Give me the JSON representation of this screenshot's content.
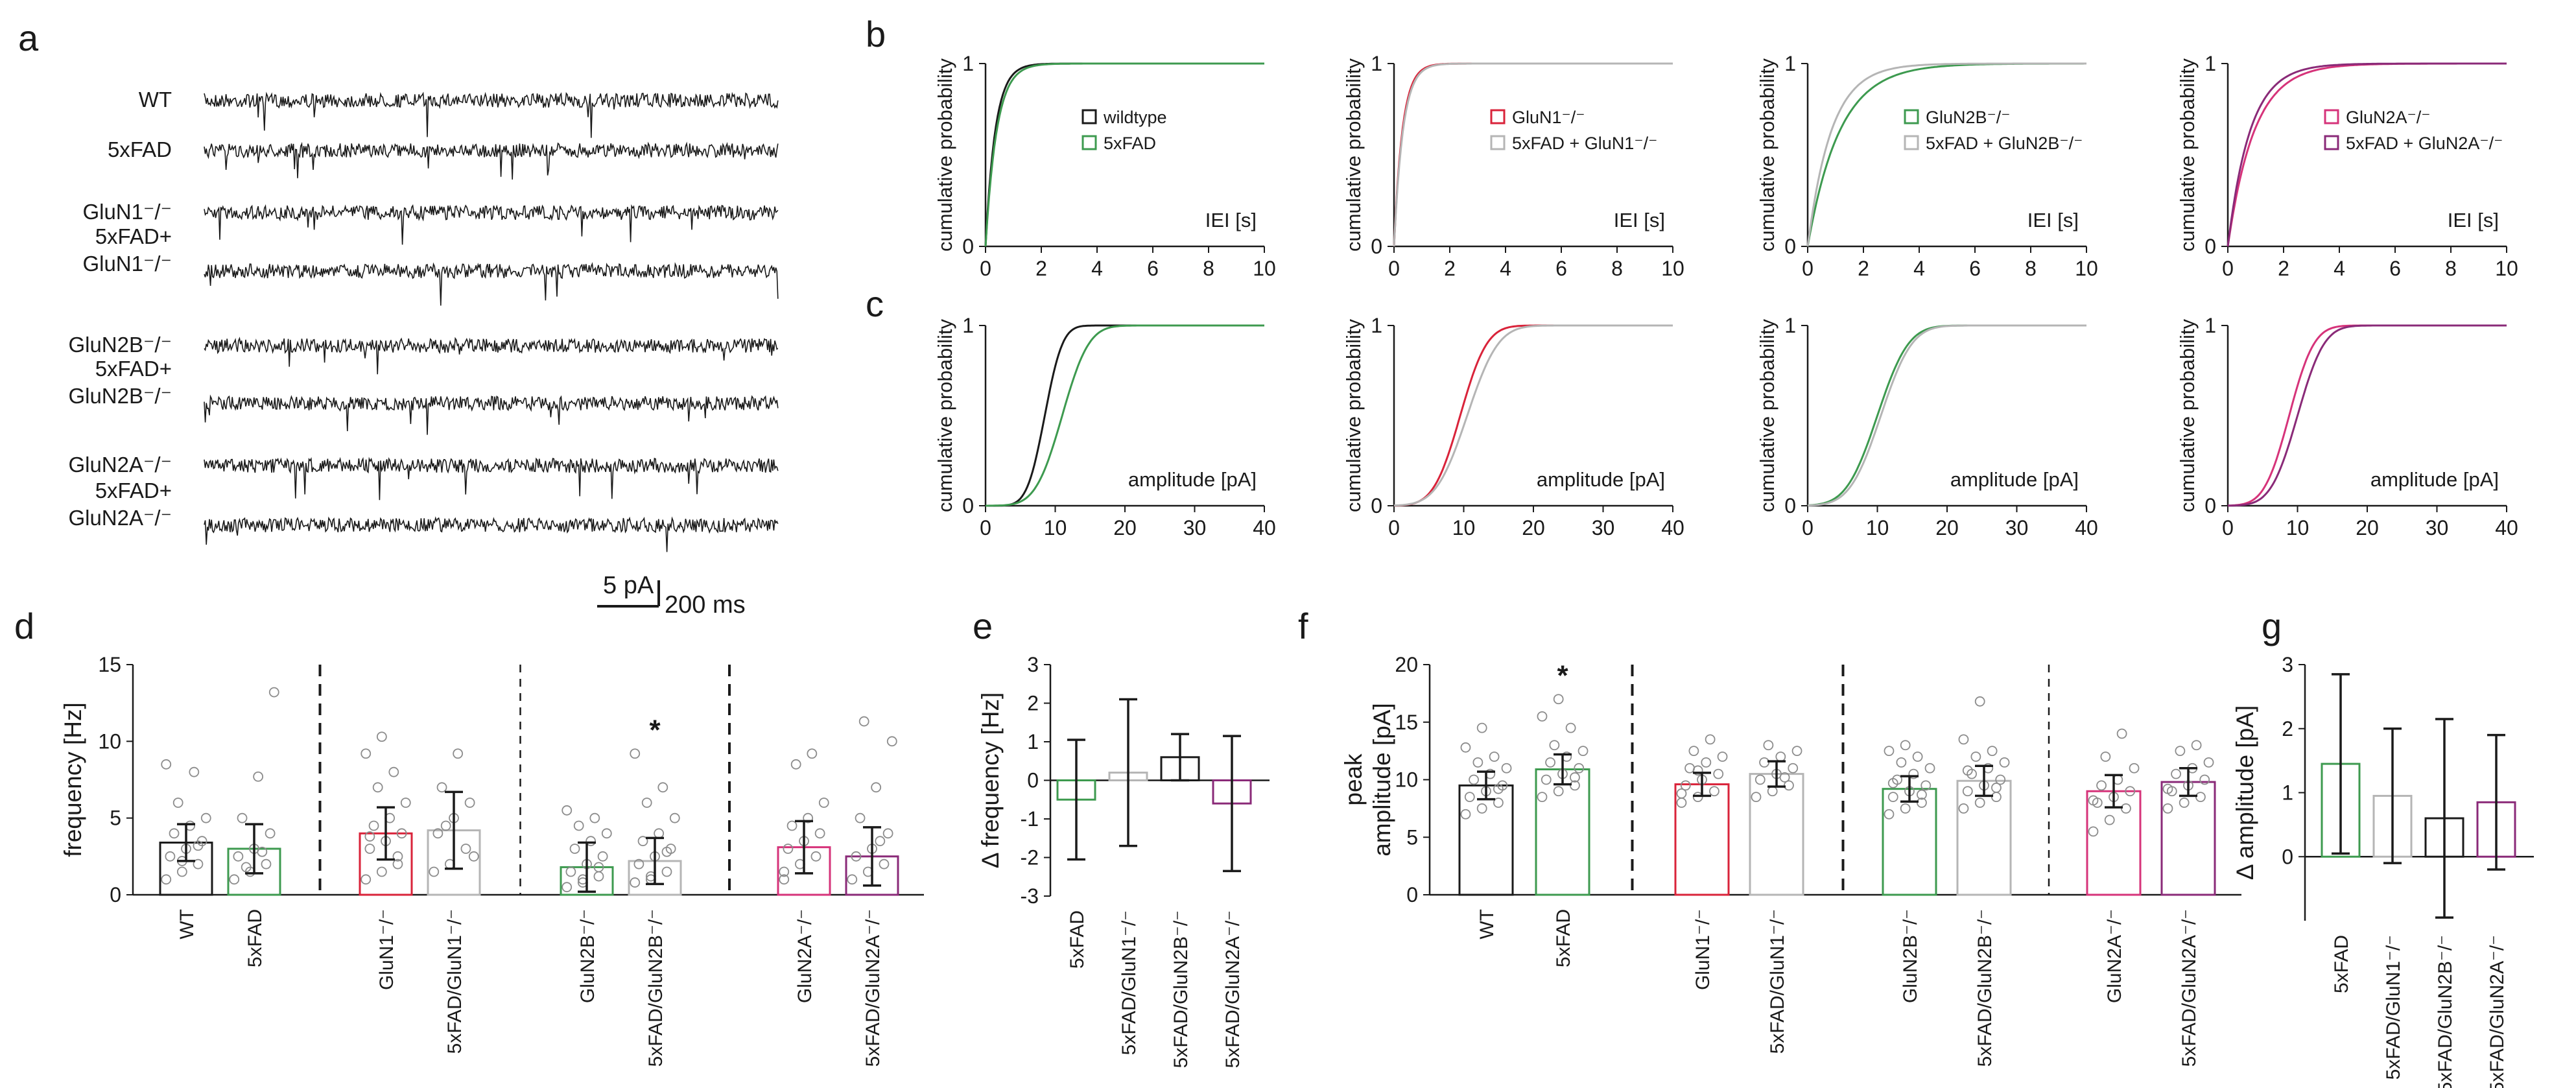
{
  "panel_letters": [
    "a",
    "b",
    "c",
    "d",
    "e",
    "f",
    "g"
  ],
  "traces": {
    "labels": [
      "WT",
      "5xFAD",
      "GluN1⁻/⁻",
      "5xFAD+\nGluN1⁻/⁻",
      "GluN2B⁻/⁻",
      "5xFAD+\nGluN2B⁻/⁻",
      "GluN2A⁻/⁻",
      "5xFAD+\nGluN2A⁻/⁻"
    ],
    "scale_amp": "5 pA",
    "scale_time": "200 ms"
  },
  "colors": {
    "black": "#1a1a1a",
    "green": "#3d9a4f",
    "red": "#d9233a",
    "gray": "#b5b5b5",
    "magenta": "#d6337a",
    "purple": "#8a2a78"
  },
  "chart_data": [
    {
      "id": "b",
      "type": "line",
      "panel": "b",
      "column": 0,
      "xlabel": "IEI [s]",
      "ylabel": "cumulative probability",
      "xlim": [
        0,
        10
      ],
      "ylim": [
        0,
        1
      ],
      "xticks": [
        0,
        2,
        4,
        6,
        8,
        10
      ],
      "yticks": [
        0,
        1
      ],
      "legend": [
        "wildtype",
        "5xFAD"
      ],
      "series": [
        {
          "name": "wildtype",
          "color": "black",
          "tau": 0.35
        },
        {
          "name": "5xFAD",
          "color": "green",
          "tau": 0.4
        }
      ]
    },
    {
      "id": "b",
      "type": "line",
      "panel": "b",
      "column": 1,
      "xlabel": "IEI [s]",
      "ylabel": "cumulative probability",
      "xlim": [
        0,
        10
      ],
      "ylim": [
        0,
        1
      ],
      "xticks": [
        0,
        2,
        4,
        6,
        8,
        10
      ],
      "yticks": [
        0,
        1
      ],
      "legend": [
        "GluN1⁻/⁻",
        "5xFAD + GluN1⁻/⁻"
      ],
      "series": [
        {
          "name": "GluN1⁻/⁻",
          "color": "red",
          "tau": 0.3
        },
        {
          "name": "5xFAD + GluN1⁻/⁻",
          "color": "gray",
          "tau": 0.32
        }
      ]
    },
    {
      "id": "b",
      "type": "line",
      "panel": "b",
      "column": 2,
      "xlabel": "IEI [s]",
      "ylabel": "cumulative probability",
      "xlim": [
        0,
        10
      ],
      "ylim": [
        0,
        1
      ],
      "xticks": [
        0,
        2,
        4,
        6,
        8,
        10
      ],
      "yticks": [
        0,
        1
      ],
      "legend": [
        "GluN2B⁻/⁻",
        "5xFAD + GluN2B⁻/⁻"
      ],
      "series": [
        {
          "name": "GluN2B⁻/⁻",
          "color": "green",
          "tau": 1.15
        },
        {
          "name": "5xFAD + GluN2B⁻/⁻",
          "color": "gray",
          "tau": 0.85
        }
      ]
    },
    {
      "id": "b",
      "type": "line",
      "panel": "b",
      "column": 3,
      "xlabel": "IEI [s]",
      "ylabel": "cumulative probability",
      "xlim": [
        0,
        10
      ],
      "ylim": [
        0,
        1
      ],
      "xticks": [
        0,
        2,
        4,
        6,
        8,
        10
      ],
      "yticks": [
        0,
        1
      ],
      "legend": [
        "GluN2A⁻/⁻",
        "5xFAD + GluN2A⁻/⁻"
      ],
      "series": [
        {
          "name": "GluN2A⁻/⁻",
          "color": "magenta",
          "tau": 0.95
        },
        {
          "name": "5xFAD + GluN2A⁻/⁻",
          "color": "purple",
          "tau": 0.8
        }
      ]
    },
    {
      "id": "c",
      "type": "line",
      "panel": "c",
      "column": 0,
      "xlabel": "amplitude [pA]",
      "ylabel": "cumulative probability",
      "xlim": [
        0,
        40
      ],
      "ylim": [
        0,
        1
      ],
      "xticks": [
        0,
        10,
        20,
        30,
        40
      ],
      "yticks": [
        0,
        1
      ],
      "series": [
        {
          "name": "wildtype",
          "color": "black",
          "mu": 8.5,
          "sigma": 2.0
        },
        {
          "name": "5xFAD",
          "color": "green",
          "mu": 11.0,
          "sigma": 3.0
        }
      ]
    },
    {
      "id": "c",
      "type": "line",
      "panel": "c",
      "column": 1,
      "xlabel": "amplitude [pA]",
      "ylabel": "cumulative probability",
      "xlim": [
        0,
        40
      ],
      "ylim": [
        0,
        1
      ],
      "xticks": [
        0,
        10,
        20,
        30,
        40
      ],
      "yticks": [
        0,
        1
      ],
      "series": [
        {
          "name": "GluN1⁻/⁻",
          "color": "red",
          "mu": 9.5,
          "sigma": 3.0
        },
        {
          "name": "5xFAD + GluN1⁻/⁻",
          "color": "gray",
          "mu": 10.5,
          "sigma": 3.5
        }
      ]
    },
    {
      "id": "c",
      "type": "line",
      "panel": "c",
      "column": 2,
      "xlabel": "amplitude [pA]",
      "ylabel": "cumulative probability",
      "xlim": [
        0,
        40
      ],
      "ylim": [
        0,
        1
      ],
      "xticks": [
        0,
        10,
        20,
        30,
        40
      ],
      "yticks": [
        0,
        1
      ],
      "series": [
        {
          "name": "GluN2B⁻/⁻",
          "color": "green",
          "mu": 10.0,
          "sigma": 3.5
        },
        {
          "name": "5xFAD + GluN2B⁻/⁻",
          "color": "gray",
          "mu": 10.5,
          "sigma": 3.5
        }
      ]
    },
    {
      "id": "c",
      "type": "line",
      "panel": "c",
      "column": 3,
      "xlabel": "amplitude [pA]",
      "ylabel": "cumulative probability",
      "xlim": [
        0,
        40
      ],
      "ylim": [
        0,
        1
      ],
      "xticks": [
        0,
        10,
        20,
        30,
        40
      ],
      "yticks": [
        0,
        1
      ],
      "series": [
        {
          "name": "GluN2A⁻/⁻",
          "color": "magenta",
          "mu": 8.8,
          "sigma": 2.8
        },
        {
          "name": "5xFAD + GluN2A⁻/⁻",
          "color": "purple",
          "mu": 10.0,
          "sigma": 3.0
        }
      ]
    },
    {
      "id": "d",
      "type": "bar",
      "panel": "d",
      "ylabel": "frequency [Hz]",
      "ylim": [
        0,
        15
      ],
      "yticks": [
        0,
        5,
        10,
        15
      ],
      "categories": [
        "WT",
        "5xFAD",
        "GluN1⁻/⁻",
        "5xFAD/GluN1⁻/⁻",
        "GluN2B⁻/⁻",
        "5xFAD/GluN2B⁻/⁻",
        "GluN2A⁻/⁻",
        "5xFAD/GluN2A⁻/⁻"
      ],
      "colors": [
        "black",
        "green",
        "red",
        "gray",
        "green",
        "gray",
        "magenta",
        "purple"
      ],
      "values": [
        3.4,
        3.0,
        4.0,
        4.2,
        1.8,
        2.2,
        3.1,
        2.5
      ],
      "err": [
        1.2,
        1.6,
        1.7,
        2.5,
        1.6,
        1.5,
        1.7,
        1.9
      ],
      "points": [
        [
          1.0,
          1.5,
          2.0,
          2.5,
          3.0,
          3.5,
          4.0,
          4.5,
          5.0,
          6.0,
          8.0,
          8.5,
          2.2,
          3.2
        ],
        [
          1.0,
          1.5,
          2.0,
          2.5,
          3.0,
          4.0,
          5.0,
          7.7,
          13.2,
          1.8,
          2.8
        ],
        [
          1.0,
          1.5,
          2.0,
          3.0,
          3.5,
          4.0,
          4.5,
          5.0,
          6.0,
          7.0,
          8.0,
          9.2,
          10.3,
          2.5,
          3.8
        ],
        [
          1.5,
          2.0,
          3.0,
          4.0,
          5.0,
          6.0,
          7.0,
          9.2,
          2.5,
          4.5
        ],
        [
          0.5,
          1.0,
          1.2,
          1.5,
          2.0,
          2.5,
          3.0,
          3.5,
          4.0,
          4.5,
          5.0,
          5.5,
          0.8,
          1.8
        ],
        [
          0.8,
          1.0,
          1.5,
          2.0,
          2.5,
          3.0,
          3.5,
          4.0,
          5.0,
          6.0,
          7.0,
          9.2,
          1.2,
          2.8
        ],
        [
          1.0,
          2.0,
          2.5,
          3.0,
          3.5,
          4.0,
          4.5,
          5.0,
          6.0,
          8.5,
          9.2,
          1.5
        ],
        [
          1.0,
          1.5,
          2.0,
          2.5,
          3.0,
          4.0,
          5.0,
          7.0,
          10.0,
          11.3,
          3.5
        ]
      ],
      "dividers": [
        {
          "after": 1,
          "style": "heavy"
        },
        {
          "after": 3,
          "style": "light"
        },
        {
          "after": 5,
          "style": "heavy"
        }
      ],
      "significance": [
        {
          "index": 5,
          "label": "*"
        }
      ]
    },
    {
      "id": "e",
      "type": "bar",
      "panel": "e",
      "ylabel": "Δ frequency [Hz]",
      "ylim": [
        -3,
        3
      ],
      "yticks": [
        -3,
        -2,
        -1,
        0,
        1,
        2,
        3
      ],
      "categories": [
        "5xFAD",
        "5xFAD/GluN1⁻/⁻",
        "5xFAD/GluN2B⁻/⁻",
        "5xFAD/GluN2A⁻/⁻"
      ],
      "colors": [
        "green",
        "gray",
        "black",
        "purple"
      ],
      "values": [
        -0.5,
        0.2,
        0.6,
        -0.6
      ],
      "err": [
        1.55,
        1.9,
        0.6,
        1.75
      ]
    },
    {
      "id": "f",
      "type": "bar",
      "panel": "f",
      "ylabel": "peak\namplitude [pA]",
      "ylim": [
        0,
        20
      ],
      "yticks": [
        0,
        5,
        10,
        15,
        20
      ],
      "categories": [
        "WT",
        "5xFAD",
        "GluN1⁻/⁻",
        "5xFAD/GluN1⁻/⁻",
        "GluN2B⁻/⁻",
        "5xFAD/GluN2B⁻/⁻",
        "GluN2A⁻/⁻",
        "5xFAD/GluN2A⁻/⁻"
      ],
      "colors": [
        "black",
        "green",
        "red",
        "gray",
        "green",
        "gray",
        "magenta",
        "purple"
      ],
      "values": [
        9.5,
        10.9,
        9.6,
        10.5,
        9.2,
        9.9,
        9.0,
        9.8
      ],
      "err": [
        1.2,
        1.3,
        1.0,
        1.1,
        1.1,
        1.3,
        1.4,
        1.2
      ],
      "points": [
        [
          7.0,
          7.5,
          8.0,
          8.5,
          9.0,
          9.5,
          10.0,
          10.5,
          11.0,
          11.5,
          12.0,
          12.8,
          14.5,
          9.2
        ],
        [
          8.5,
          9.0,
          9.5,
          10.0,
          10.5,
          11.0,
          11.5,
          12.0,
          12.5,
          13.0,
          14.5,
          15.5,
          17.0,
          10.2
        ],
        [
          8.0,
          8.5,
          9.0,
          9.5,
          10.0,
          10.5,
          11.0,
          11.5,
          12.0,
          12.5,
          13.5,
          8.8,
          10.8
        ],
        [
          8.5,
          9.0,
          9.5,
          10.0,
          10.5,
          11.0,
          11.5,
          12.0,
          12.5,
          13.0,
          10.2
        ],
        [
          7.0,
          7.5,
          8.0,
          8.5,
          9.0,
          9.5,
          10.0,
          10.5,
          11.0,
          11.5,
          12.0,
          12.5,
          13.0,
          8.7,
          9.7
        ],
        [
          7.5,
          8.0,
          8.5,
          9.0,
          9.5,
          10.0,
          10.5,
          11.0,
          11.5,
          12.0,
          12.5,
          13.5,
          16.8,
          9.3,
          10.8
        ],
        [
          5.5,
          6.5,
          7.5,
          8.0,
          8.5,
          9.0,
          9.5,
          10.0,
          11.0,
          12.0,
          14.0,
          8.2
        ],
        [
          7.5,
          8.0,
          8.5,
          9.0,
          9.5,
          10.0,
          10.5,
          11.0,
          11.5,
          12.5,
          13.0,
          9.2
        ]
      ],
      "dividers": [
        {
          "after": 1,
          "style": "heavy"
        },
        {
          "after": 3,
          "style": "heavy"
        },
        {
          "after": 5,
          "style": "light"
        }
      ],
      "significance": [
        {
          "index": 1,
          "label": "*"
        }
      ]
    },
    {
      "id": "g",
      "type": "bar",
      "panel": "g",
      "ylabel": "Δ amplitude [pA]",
      "ylim": [
        -1,
        3
      ],
      "yticks": [
        0,
        1,
        2,
        3
      ],
      "categories": [
        "5xFAD",
        "5xFAD/GluN1⁻/⁻",
        "5xFAD/GluN2B⁻/⁻",
        "5xFAD/GluN2A⁻/⁻"
      ],
      "colors": [
        "green",
        "gray",
        "black",
        "purple"
      ],
      "values": [
        1.45,
        0.95,
        0.6,
        0.85
      ],
      "err": [
        1.4,
        1.05,
        1.55,
        1.05
      ]
    }
  ]
}
